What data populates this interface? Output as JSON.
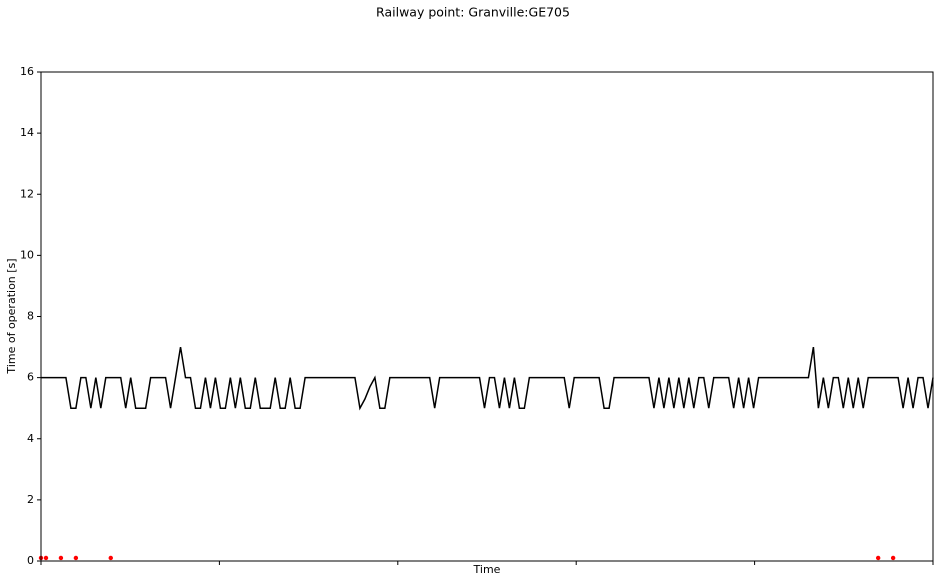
{
  "chart_data": {
    "type": "line",
    "title": "Railway point: Granville:GE705",
    "x_label": "Time",
    "y_label": "Time of operation [s]",
    "ylim": [
      0,
      16
    ],
    "yticks": [
      0,
      2,
      4,
      6,
      8,
      10,
      12,
      14,
      16
    ],
    "series": [
      {
        "color": "#000000",
        "linestyle": "solid",
        "values": [
          6,
          6,
          6,
          6,
          6,
          6,
          5,
          5,
          6,
          6,
          5,
          6,
          5,
          6,
          6,
          6,
          6,
          5,
          6,
          5,
          5,
          5,
          6,
          6,
          6,
          6,
          5,
          6,
          7,
          6,
          6,
          5,
          5,
          6,
          5,
          6,
          5,
          5,
          6,
          5,
          6,
          5,
          5,
          6,
          5,
          5,
          5,
          6,
          5,
          5,
          6,
          5,
          5,
          6,
          6,
          6,
          6,
          6,
          6,
          6,
          6,
          6,
          6,
          6,
          5,
          5.3,
          5.7,
          6,
          5,
          5,
          6,
          6,
          6,
          6,
          6,
          6,
          6,
          6,
          6,
          5,
          6,
          6,
          6,
          6,
          6,
          6,
          6,
          6,
          6,
          5,
          6,
          6,
          5,
          6,
          5,
          6,
          5,
          5,
          6,
          6,
          6,
          6,
          6,
          6,
          6,
          6,
          5,
          6,
          6,
          6,
          6,
          6,
          6,
          5,
          5,
          6,
          6,
          6,
          6,
          6,
          6,
          6,
          6,
          5,
          6,
          5,
          6,
          5,
          6,
          5,
          6,
          5,
          6,
          6,
          5,
          6,
          6,
          6,
          6,
          5,
          6,
          5,
          6,
          5,
          6,
          6,
          6,
          6,
          6,
          6,
          6,
          6,
          6,
          6,
          6,
          7,
          5,
          6,
          5,
          6,
          6,
          5,
          6,
          5,
          6,
          5,
          6,
          6,
          6,
          6,
          6,
          6,
          6,
          5,
          6,
          5,
          6,
          6,
          5,
          6
        ]
      },
      {
        "color": "#ff0000",
        "linestyle": "none",
        "marker": "o",
        "values": [
          0.1,
          0.1,
          null,
          null,
          0.1,
          null,
          null,
          0.1,
          null,
          null,
          null,
          null,
          null,
          null,
          0.1,
          null,
          null,
          null,
          null,
          null,
          null,
          null,
          null,
          null,
          null,
          null,
          null,
          null,
          null,
          null,
          null,
          null,
          null,
          null,
          null,
          null,
          null,
          null,
          null,
          null,
          null,
          null,
          null,
          null,
          null,
          null,
          null,
          null,
          null,
          null,
          null,
          null,
          null,
          null,
          null,
          null,
          null,
          null,
          null,
          null,
          null,
          null,
          null,
          null,
          null,
          null,
          null,
          null,
          null,
          null,
          null,
          null,
          null,
          null,
          null,
          null,
          null,
          null,
          null,
          null,
          null,
          null,
          null,
          null,
          null,
          null,
          null,
          null,
          null,
          null,
          null,
          null,
          null,
          null,
          null,
          null,
          null,
          null,
          null,
          null,
          null,
          null,
          null,
          null,
          null,
          null,
          null,
          null,
          null,
          null,
          null,
          null,
          null,
          null,
          null,
          null,
          null,
          null,
          null,
          null,
          null,
          null,
          null,
          null,
          null,
          null,
          null,
          null,
          null,
          null,
          null,
          null,
          null,
          null,
          null,
          null,
          null,
          null,
          null,
          null,
          null,
          null,
          null,
          null,
          null,
          null,
          null,
          null,
          null,
          null,
          null,
          null,
          null,
          null,
          null,
          null,
          null,
          null,
          null,
          null,
          null,
          null,
          null,
          null,
          null,
          null,
          null,
          null,
          0.1,
          null,
          null,
          0.1,
          null,
          null,
          null,
          null,
          null,
          null,
          null,
          null
        ]
      }
    ]
  }
}
